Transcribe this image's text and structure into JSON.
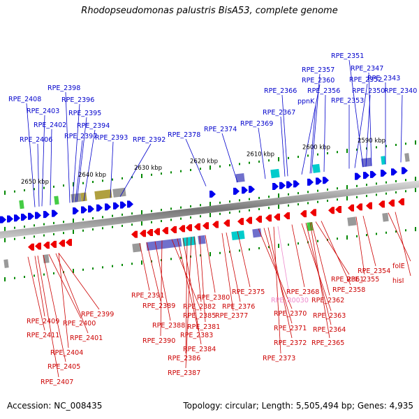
{
  "header": {
    "title": "Rhodopseudomonas palustris BisA53, complete genome"
  },
  "footer": {
    "accession": "Accession: NC_008435",
    "summary": "Topology: circular; Length: 5,505,494 bp; Genes: 4,935"
  },
  "colors": {
    "forward_gene": "#0000ee",
    "reverse_gene": "#ee0000",
    "forward_label": "#0000cc",
    "reverse_label": "#cc0000",
    "rna_label": "#ee88cc",
    "backbone": "#888888",
    "tick": "#008800",
    "cog_gold": "#b0a040",
    "cog_purple": "#7070cc",
    "cog_cyan": "#00cccc",
    "cog_green": "#44cc44",
    "cog_gray": "#999999"
  },
  "scale_labels": [
    "2590 kbp",
    "2600 kbp",
    "2610 kbp",
    "2620 kbp",
    "2630 kbp",
    "2640 kbp",
    "2650 kbp"
  ],
  "forward_labels": [
    "RPE_2408",
    "RPE_2403",
    "RPE_2402",
    "RPE_2406",
    "RPE_2398",
    "RPE_2396",
    "RPE_2395",
    "RPE_2394",
    "RPE_2397",
    "RPE_2393",
    "RPE_2392",
    "RPE_2378",
    "RPE_2374",
    "RPE_2369",
    "RPE_2367",
    "RPE_2366",
    "RPE_2360",
    "RPE_2357",
    "ppnK",
    "RPE_2356",
    "RPE_2353",
    "RPE_2352",
    "RPE_2351",
    "RPE_2350",
    "RPE_2347",
    "RPE_2343",
    "RPE_2340"
  ],
  "reverse_labels": [
    "RPE_2409",
    "RPE_2411",
    "RPE_2400",
    "RPE_2404",
    "RPE_2401",
    "RPE_2405",
    "RPE_2407",
    "RPE_2399",
    "RPE_2391",
    "RPE_2389",
    "RPE_2388",
    "RPE_2390",
    "RPE_2385",
    "RPE_2383",
    "RPE_2384",
    "RPE_2386",
    "RPE_2387",
    "RPE_2382",
    "RPE_2381",
    "RPE_2380",
    "RPE_2377",
    "RPE_2376",
    "RPE_2375",
    "RPE_2370",
    "RPE_2371",
    "RPE_2372",
    "RPE_2373",
    "RPE_2368",
    "RPE_2363",
    "RPE_2364",
    "RPE_2365",
    "RPE_2362",
    "RPE_2361",
    "RPE_2358",
    "RPE_2355",
    "RPE_2354",
    "folE",
    "hisI"
  ],
  "rna_labels": [
    "RPE_R0030"
  ]
}
